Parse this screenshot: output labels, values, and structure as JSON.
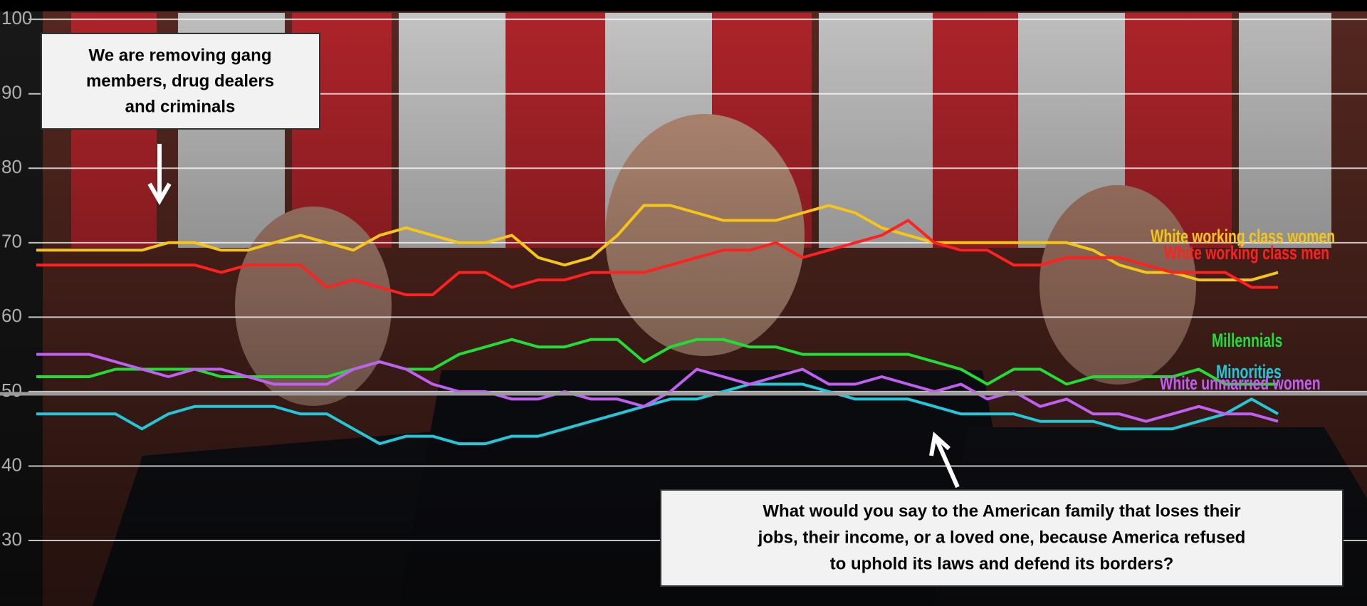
{
  "chart_data": {
    "type": "line",
    "ylim": [
      21.2,
      102.6
    ],
    "yticks": [
      30,
      40,
      50,
      60,
      70,
      80,
      90,
      100
    ],
    "grid": true,
    "series": [
      {
        "name": "White working class women",
        "color": "#f5c518",
        "values": [
          69,
          69,
          69,
          69,
          69,
          70,
          70,
          69,
          69,
          70,
          71,
          70,
          69,
          71,
          72,
          71,
          70,
          70,
          71,
          68,
          67,
          68,
          71,
          75,
          75,
          74,
          73,
          73,
          73,
          74,
          75,
          74,
          72,
          71,
          70,
          70,
          70,
          70,
          70,
          70,
          69,
          67,
          66,
          66,
          65,
          65,
          65,
          66
        ]
      },
      {
        "name": "White working class men",
        "color": "#ff2020",
        "values": [
          67,
          67,
          67,
          67,
          67,
          67,
          67,
          66,
          67,
          67,
          67,
          64,
          65,
          64,
          63,
          63,
          66,
          66,
          64,
          65,
          65,
          66,
          66,
          66,
          67,
          68,
          69,
          69,
          70,
          68,
          69,
          70,
          71,
          73,
          70,
          69,
          69,
          67,
          67,
          68,
          68,
          68,
          67,
          66,
          66,
          66,
          64,
          64
        ]
      },
      {
        "name": "Millennials",
        "color": "#22dd33",
        "values": [
          52,
          52,
          52,
          53,
          53,
          53,
          53,
          52,
          52,
          52,
          52,
          52,
          53,
          54,
          53,
          53,
          55,
          56,
          57,
          56,
          56,
          57,
          57,
          54,
          56,
          57,
          57,
          56,
          56,
          55,
          55,
          55,
          55,
          55,
          54,
          53,
          51,
          53,
          53,
          51,
          52,
          52,
          52,
          52,
          53,
          51,
          51,
          51
        ]
      },
      {
        "name": "Minorities",
        "color": "#22c8d8",
        "values": [
          47,
          47,
          47,
          47,
          45,
          47,
          48,
          48,
          48,
          48,
          47,
          47,
          45,
          43,
          44,
          44,
          43,
          43,
          44,
          44,
          45,
          46,
          47,
          48,
          49,
          49,
          50,
          51,
          51,
          51,
          50,
          49,
          49,
          49,
          48,
          47,
          47,
          47,
          46,
          46,
          46,
          45,
          45,
          45,
          46,
          47,
          49,
          47
        ]
      },
      {
        "name": "White unmarried women",
        "color": "#c060f0",
        "values": [
          55,
          55,
          55,
          54,
          53,
          52,
          53,
          53,
          52,
          51,
          51,
          51,
          53,
          54,
          53,
          51,
          50,
          50,
          49,
          49,
          50,
          49,
          49,
          48,
          50,
          53,
          52,
          51,
          52,
          53,
          51,
          51,
          52,
          51,
          50,
          51,
          49,
          50,
          48,
          49,
          47,
          47,
          46,
          47,
          48,
          47,
          47,
          46
        ]
      }
    ],
    "annotations": [
      {
        "lines": [
          "We are removing gang",
          "members, drug dealers",
          "and criminals"
        ]
      },
      {
        "lines": [
          "What would you say to the American family that loses their",
          "jobs, their income, or a loved one, because America refused",
          "to uphold its laws and defend its borders?"
        ]
      }
    ]
  }
}
